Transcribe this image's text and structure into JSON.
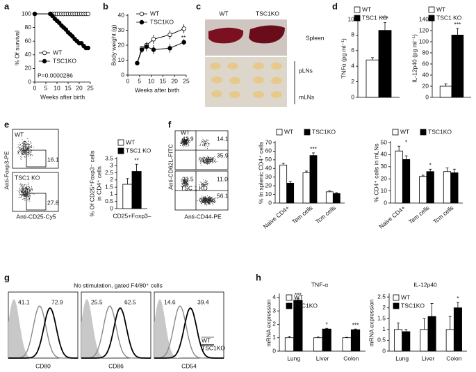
{
  "panel_labels": [
    "a",
    "b",
    "c",
    "d",
    "e",
    "f",
    "g",
    "h"
  ],
  "chart_data": [
    {
      "type": "line",
      "x_label": "Weeks after birth",
      "y_label": "% Of survival",
      "annotation": "P=0.0000286",
      "x": [
        0,
        7,
        8,
        9,
        10,
        11,
        12,
        13,
        14,
        15,
        16,
        17,
        18,
        19,
        20,
        21,
        22,
        23,
        24
      ],
      "xlim": [
        0,
        25
      ],
      "xticks": [
        0,
        5,
        10,
        15,
        20,
        25
      ],
      "ylim": [
        0,
        100
      ],
      "yticks": [
        0,
        20,
        40,
        60,
        80,
        100
      ],
      "series": [
        {
          "name": "WT",
          "color": "#ffffff",
          "values": [
            100,
            100,
            100,
            100,
            100,
            100,
            100,
            100,
            100,
            100,
            100,
            100,
            100,
            100,
            100,
            100,
            100,
            100,
            100
          ]
        },
        {
          "name": "TSC1KO",
          "color": "#000000",
          "values": [
            100,
            100,
            97,
            93,
            90,
            87,
            83,
            80,
            77,
            73,
            70,
            67,
            63,
            60,
            57,
            57,
            53,
            50,
            50
          ]
        }
      ]
    },
    {
      "type": "line",
      "x_label": "Weeks after birth",
      "y_label": "Body weight (g)",
      "annotation": "**",
      "x": [
        4,
        6,
        8,
        11,
        18,
        24
      ],
      "xlim": [
        0,
        25
      ],
      "xticks": [
        0,
        5,
        10,
        15,
        20,
        25
      ],
      "ylim": [
        0,
        40
      ],
      "yticks": [
        0,
        10,
        20,
        30,
        40
      ],
      "series": [
        {
          "name": "WT",
          "color": "#ffffff",
          "values": [
            8,
            18,
            20,
            24,
            27,
            31
          ],
          "errors": [
            1,
            1.5,
            2,
            3,
            3,
            3
          ]
        },
        {
          "name": "TSC1KO",
          "color": "#000000",
          "values": [
            8,
            17,
            19,
            17,
            18,
            22
          ],
          "errors": [
            1,
            2,
            3,
            3,
            3,
            2
          ]
        }
      ]
    },
    {
      "type": "bar",
      "y_label": "TNFα (pg ml⁻¹)",
      "categories": [
        null
      ],
      "annotations": [
        "***"
      ],
      "ylim": [
        0,
        10
      ],
      "yticks": [
        0,
        2,
        4,
        6,
        8,
        10
      ],
      "series": [
        {
          "name": "WT",
          "color": "#ffffff",
          "values": [
            4.8
          ],
          "errors": [
            0.3
          ]
        },
        {
          "name": "TSC1 KO",
          "color": "#000000",
          "values": [
            8.6
          ],
          "errors": [
            1.0
          ]
        }
      ]
    },
    {
      "type": "bar",
      "y_label": "IL-12p40 (pg ml⁻¹)",
      "categories": [
        null
      ],
      "annotations": [
        "***"
      ],
      "ylim": [
        0,
        140
      ],
      "yticks": [
        0,
        20,
        40,
        60,
        80,
        100,
        120,
        140
      ],
      "series": [
        {
          "name": "WT",
          "color": "#ffffff",
          "values": [
            20
          ],
          "errors": [
            4
          ]
        },
        {
          "name": "TSC1 KO",
          "color": "#000000",
          "values": [
            112
          ],
          "errors": [
            12
          ]
        }
      ]
    },
    {
      "type": "bar",
      "y_label": [
        "% Of CD25⁺Foxp3⁻ cells",
        "in CD4⁺ cells"
      ],
      "categories": [
        "CD25+Foxp3–"
      ],
      "annotations": [
        "**"
      ],
      "ylim": [
        0,
        3.5
      ],
      "yticks": [
        0,
        0.5,
        1,
        1.5,
        2,
        2.5,
        3,
        3.5
      ],
      "series": [
        {
          "name": "WT",
          "color": "#ffffff",
          "values": [
            1.7
          ],
          "errors": [
            0.4
          ]
        },
        {
          "name": "TSC1 KO",
          "color": "#000000",
          "values": [
            2.6
          ],
          "errors": [
            0.5
          ]
        }
      ]
    },
    {
      "type": "bar",
      "y_label": "% In splenic CD4⁺ cells",
      "categories": [
        "Naive CD4+",
        "Tem cells",
        "Tcm cells"
      ],
      "annotations": [
        null,
        "***",
        null
      ],
      "ylim": [
        0,
        70
      ],
      "yticks": [
        0,
        10,
        20,
        30,
        40,
        50,
        60,
        70
      ],
      "series": [
        {
          "name": "WT",
          "color": "#ffffff",
          "values": [
            44,
            35,
            13
          ],
          "errors": [
            2,
            2,
            1
          ]
        },
        {
          "name": "TSC1KO",
          "color": "#000000",
          "values": [
            23,
            55,
            11
          ],
          "errors": [
            2,
            3,
            1
          ]
        }
      ]
    },
    {
      "type": "bar",
      "y_label": "% CD4⁺ cells in mLNs",
      "categories": [
        "Naive CD4+",
        "Tem cells",
        "Tcm cells"
      ],
      "annotations": [
        "*",
        "*",
        null
      ],
      "ylim": [
        0,
        50
      ],
      "yticks": [
        0,
        10,
        20,
        30,
        40,
        50
      ],
      "series": [
        {
          "name": "WT",
          "color": "#ffffff",
          "values": [
            43,
            22,
            26
          ],
          "errors": [
            4,
            1,
            3
          ]
        },
        {
          "name": "TSC1KO",
          "color": "#000000",
          "values": [
            36,
            26,
            25
          ],
          "errors": [
            3,
            2,
            3
          ]
        }
      ]
    },
    {
      "type": "bar",
      "title": "TNF-α",
      "y_label": "mRNA expression",
      "categories": [
        "Lung",
        "Liver",
        "Colon"
      ],
      "annotations": [
        "***",
        "*",
        "***"
      ],
      "ylim": [
        0,
        4.2
      ],
      "yticks": [
        0,
        1,
        2,
        3,
        4
      ],
      "series": [
        {
          "name": "WT",
          "color": "#ffffff",
          "values": [
            1,
            1,
            1
          ],
          "errors": [
            0.1,
            0.05,
            0.03
          ]
        },
        {
          "name": "TSC1KO",
          "color": "#000000",
          "values": [
            3.8,
            1.65,
            1.6
          ],
          "errors": [
            0.1,
            0.05,
            0.05
          ]
        }
      ]
    },
    {
      "type": "bar",
      "title": "IL-12p40",
      "y_label": "mRNA expression",
      "categories": [
        "Lung",
        "Liver",
        "Colon"
      ],
      "annotations": [
        null,
        null,
        "*"
      ],
      "ylim": [
        0,
        2.6
      ],
      "yticks": [
        0,
        0.5,
        1,
        1.5,
        2,
        2.5
      ],
      "series": [
        {
          "name": "WT",
          "color": "#ffffff",
          "values": [
            1,
            1,
            1
          ],
          "errors": [
            0.3,
            0.5,
            0.6
          ]
        },
        {
          "name": "TSC1KO",
          "color": "#000000",
          "values": [
            0.9,
            1.6,
            2.0
          ],
          "errors": [
            0.1,
            0.6,
            0.25
          ]
        }
      ]
    }
  ],
  "photo": {
    "columns": [
      "WT",
      "TSC1KO"
    ],
    "rows": [
      "Spleen",
      "pLNs",
      "mLNs"
    ]
  },
  "flow_e": {
    "axis_y": "Anti-Foxp3-PE",
    "axis_x": "Anti-CD25-Cy5",
    "plots": [
      {
        "label": "WT",
        "gate": "16.1"
      },
      {
        "label": "TSC1 KO",
        "gate": "27.8"
      }
    ]
  },
  "flow_f": {
    "axis_y": "Anti-CD62L-FITC",
    "axis_x": "Anti-CD44-PE",
    "plots": [
      {
        "label": "WT",
        "quadrants": [
          "42.9",
          "14.1",
          "35.9"
        ]
      },
      {
        "label": "TSC 1 KO",
        "quadrants": [
          "23.5",
          "11.0",
          "56.1"
        ]
      }
    ]
  },
  "histograms": {
    "title": "No stimulation, gated F4/80⁺ cells",
    "legend": [
      "WT",
      "TSC1KO"
    ],
    "plots": [
      {
        "marker": "CD80",
        "wt": "41.1",
        "ko": "72.9"
      },
      {
        "marker": "CD86",
        "wt": "25.5",
        "ko": "62.5"
      },
      {
        "marker": "CD54",
        "wt": "14.6",
        "ko": "39.4"
      }
    ]
  }
}
